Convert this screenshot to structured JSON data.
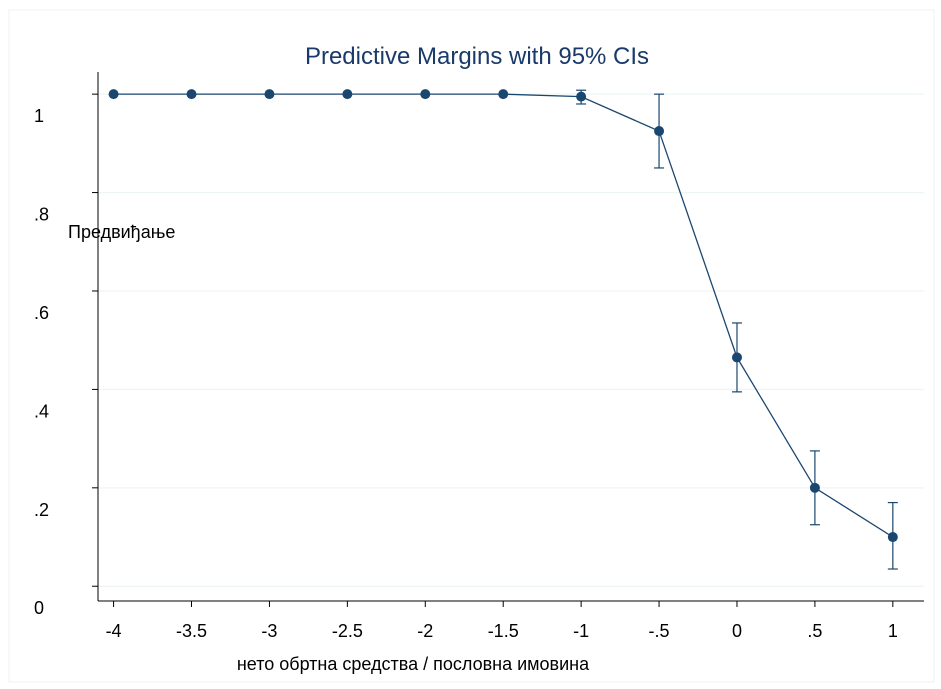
{
  "chart_data": {
    "type": "line",
    "title": "Predictive Margins with 95% CIs",
    "xlabel": "нето обртна средства / пословна имовина",
    "ylabel": "Предвиђање",
    "xlim": [
      -4.1,
      1.2
    ],
    "ylim": [
      -0.03,
      1.045
    ],
    "x_ticks": [
      {
        "value": -4,
        "label": "-4"
      },
      {
        "value": -3.5,
        "label": "-3.5"
      },
      {
        "value": -3,
        "label": "-3"
      },
      {
        "value": -2.5,
        "label": "-2.5"
      },
      {
        "value": -2,
        "label": "-2"
      },
      {
        "value": -1.5,
        "label": "-1.5"
      },
      {
        "value": -1,
        "label": "-1"
      },
      {
        "value": -0.5,
        "label": "-.5"
      },
      {
        "value": 0,
        "label": "0"
      },
      {
        "value": 0.5,
        "label": ".5"
      },
      {
        "value": 1,
        "label": "1"
      }
    ],
    "y_ticks": [
      {
        "value": 0,
        "label": "0"
      },
      {
        "value": 0.2,
        "label": ".2"
      },
      {
        "value": 0.4,
        "label": ".4"
      },
      {
        "value": 0.6,
        "label": ".6"
      },
      {
        "value": 0.8,
        "label": ".8"
      },
      {
        "value": 1,
        "label": "1"
      }
    ],
    "grid": true,
    "series": [
      {
        "x": [
          -4,
          -3.5,
          -3,
          -2.5,
          -2,
          -1.5,
          -1,
          -0.5,
          0,
          0.5,
          1
        ],
        "y": [
          1.0,
          1.0,
          1.0,
          1.0,
          1.0,
          1.0,
          0.995,
          0.925,
          0.465,
          0.2,
          0.1
        ],
        "ci_low": [
          1.0,
          1.0,
          1.0,
          1.0,
          1.0,
          1.0,
          0.98,
          0.85,
          0.395,
          0.125,
          0.035
        ],
        "ci_high": [
          1.0,
          1.0,
          1.0,
          1.0,
          1.0,
          1.0,
          1.008,
          1.0,
          0.535,
          0.275,
          0.17
        ]
      }
    ],
    "colors": {
      "line": "#1a476f",
      "grid": "#eaf2f3",
      "axis": "#000000",
      "title": "#1a3a6a"
    }
  }
}
